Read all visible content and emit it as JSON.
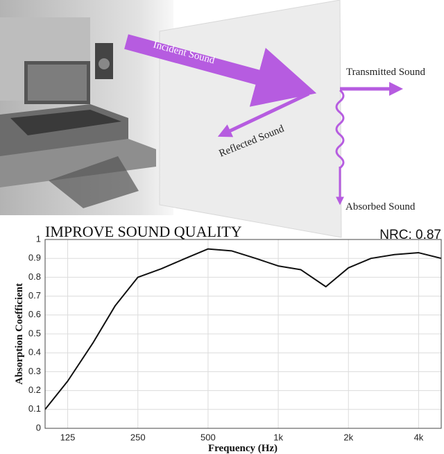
{
  "illustration": {
    "labels": [
      "Incident Sound",
      "Reflected Sound",
      "Transmitted Sound",
      "Absorbed Sound"
    ]
  },
  "chart_data": {
    "type": "line",
    "title": "IMPROVE SOUND QUALITY",
    "subtitle": "NRC: 0.87",
    "x_label": "Frequency (Hz)",
    "y_label": "Absorption Coefficient",
    "x": [
      100,
      125,
      160,
      200,
      250,
      315,
      400,
      500,
      630,
      800,
      1000,
      1250,
      1600,
      2000,
      2500,
      3150,
      4000,
      5000
    ],
    "series": [
      {
        "name": "Absorption Coefficient",
        "color": "#111111",
        "values": [
          0.1,
          0.25,
          0.45,
          0.65,
          0.8,
          0.845,
          0.9,
          0.95,
          0.94,
          0.9,
          0.86,
          0.84,
          0.75,
          0.85,
          0.9,
          0.92,
          0.93,
          0.9
        ]
      }
    ],
    "xlim": [
      100,
      5000
    ],
    "x_log": true,
    "xticks": [
      125,
      250,
      500,
      {
        "value": 1000,
        "label": "1k"
      },
      {
        "value": 2000,
        "label": "2k"
      },
      {
        "value": 4000,
        "label": "4k"
      }
    ],
    "ylim": [
      0,
      1
    ],
    "yticks": [
      0,
      0.1,
      0.2,
      0.3,
      0.4,
      0.5,
      0.6,
      0.7,
      0.8,
      0.9,
      1
    ],
    "grid": true
  }
}
